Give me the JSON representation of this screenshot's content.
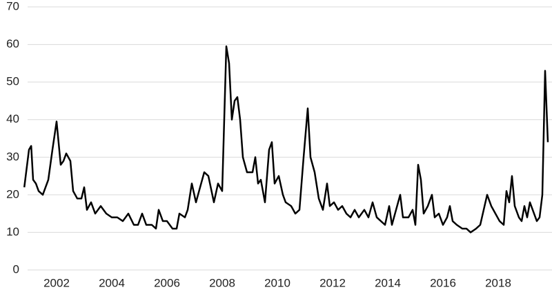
{
  "chart_data": {
    "type": "line",
    "color": "#000000",
    "grid": true,
    "x": [
      2000.83,
      2001.0,
      2001.08,
      2001.15,
      2001.25,
      2001.35,
      2001.5,
      2001.7,
      2001.85,
      2002.0,
      2002.15,
      2002.25,
      2002.35,
      2002.5,
      2002.6,
      2002.75,
      2002.9,
      2003.0,
      2003.1,
      2003.25,
      2003.4,
      2003.6,
      2003.8,
      2004.0,
      2004.2,
      2004.4,
      2004.6,
      2004.8,
      2004.95,
      2005.1,
      2005.25,
      2005.45,
      2005.6,
      2005.7,
      2005.85,
      2006.0,
      2006.2,
      2006.35,
      2006.45,
      2006.65,
      2006.75,
      2006.9,
      2007.05,
      2007.2,
      2007.35,
      2007.5,
      2007.7,
      2007.85,
      2008.0,
      2008.15,
      2008.25,
      2008.35,
      2008.45,
      2008.55,
      2008.65,
      2008.75,
      2008.9,
      2009.1,
      2009.2,
      2009.3,
      2009.4,
      2009.55,
      2009.7,
      2009.8,
      2009.9,
      2010.05,
      2010.2,
      2010.3,
      2010.5,
      2010.65,
      2010.8,
      2010.95,
      2011.1,
      2011.2,
      2011.35,
      2011.5,
      2011.65,
      2011.8,
      2011.9,
      2012.05,
      2012.2,
      2012.35,
      2012.5,
      2012.65,
      2012.8,
      2012.95,
      2013.15,
      2013.3,
      2013.45,
      2013.6,
      2013.75,
      2013.9,
      2014.05,
      2014.15,
      2014.3,
      2014.45,
      2014.55,
      2014.75,
      2014.9,
      2015.0,
      2015.1,
      2015.2,
      2015.3,
      2015.45,
      2015.6,
      2015.7,
      2015.85,
      2016.0,
      2016.15,
      2016.25,
      2016.35,
      2016.5,
      2016.7,
      2016.85,
      2017.0,
      2017.2,
      2017.35,
      2017.6,
      2017.75,
      2017.9,
      2018.05,
      2018.2,
      2018.3,
      2018.4,
      2018.5,
      2018.6,
      2018.75,
      2018.85,
      2018.95,
      2019.05,
      2019.15,
      2019.3,
      2019.4,
      2019.5,
      2019.6,
      2019.7,
      2019.8
    ],
    "values": [
      22,
      32,
      33,
      24,
      23,
      21,
      20,
      24,
      32,
      39.5,
      28,
      29,
      31,
      29,
      21,
      19,
      19,
      22,
      16,
      18,
      15,
      17,
      15,
      14,
      14,
      13,
      15,
      12,
      12,
      15,
      12,
      12,
      11,
      16,
      13,
      13,
      11,
      11,
      15,
      14,
      16,
      23,
      18,
      22,
      26,
      25,
      18,
      23,
      21,
      59.5,
      55,
      40,
      45,
      46,
      40,
      30,
      26,
      26,
      30,
      23,
      24,
      18,
      32,
      34,
      23,
      25,
      20,
      18,
      17,
      15,
      16,
      30,
      43,
      30,
      26,
      19,
      16,
      23,
      17,
      18,
      16,
      17,
      15,
      14,
      16,
      14,
      16,
      14,
      18,
      14,
      13,
      12,
      17,
      12,
      16,
      20,
      14,
      14,
      16,
      12,
      28,
      24,
      15,
      17,
      20,
      14,
      15,
      12,
      14,
      17,
      13,
      12,
      11,
      11,
      10,
      11,
      12,
      20,
      17,
      15,
      13,
      12,
      21,
      18,
      25,
      17,
      14,
      13,
      17,
      14,
      18,
      15,
      13,
      14,
      20,
      53,
      34
    ],
    "xlim": [
      2000.7,
      2019.95
    ],
    "xticks": [
      2002,
      2004,
      2006,
      2008,
      2010,
      2012,
      2014,
      2016,
      2018
    ],
    "ylim": [
      0,
      70
    ],
    "yticks": [
      0,
      10,
      20,
      30,
      40,
      50,
      60,
      70
    ]
  }
}
